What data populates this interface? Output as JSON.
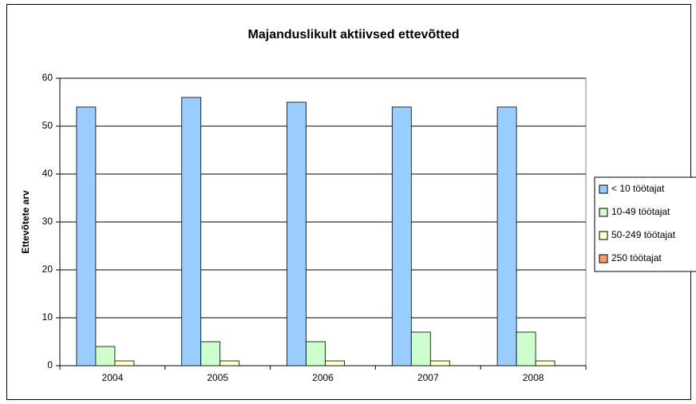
{
  "chart_data": {
    "type": "bar",
    "title": "Majanduslikult aktiivsed ettevõtted",
    "y_label": "Ettevõtete arv",
    "categories": [
      "2004",
      "2005",
      "2006",
      "2007",
      "2008"
    ],
    "series": [
      {
        "name": "< 10 töötajat",
        "color": "#99ccff",
        "values": [
          54,
          56,
          55,
          54,
          54
        ]
      },
      {
        "name": "10-49 töötajat",
        "color": "#ccffcc",
        "values": [
          4,
          5,
          5,
          7,
          7
        ]
      },
      {
        "name": "50-249 töötajat",
        "color": "#ffffcc",
        "values": [
          1,
          1,
          1,
          1,
          1
        ]
      },
      {
        "name": "250 töötajat",
        "color": "#ff9966",
        "values": [
          0,
          0,
          0,
          0,
          0
        ]
      }
    ],
    "ylim": [
      0,
      60
    ],
    "yticks": [
      0,
      10,
      20,
      30,
      40,
      50,
      60
    ],
    "grid": true,
    "legend": "right"
  }
}
